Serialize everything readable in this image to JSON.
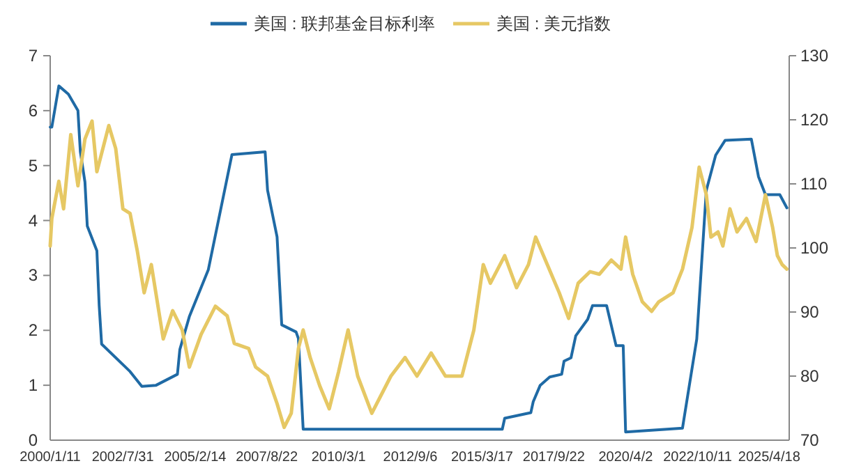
{
  "chart_data": {
    "type": "line",
    "legend": "top",
    "grid": false,
    "marker": "none",
    "line_style": "solid",
    "xlim": [
      "2000-01-11",
      "2025-12-31"
    ],
    "xticks": [
      {
        "value": "2000-01-11",
        "label": "2000/1/11"
      },
      {
        "value": "2002-07-31",
        "label": "2002/7/31"
      },
      {
        "value": "2005-02-14",
        "label": "2005/2/14"
      },
      {
        "value": "2007-08-22",
        "label": "2007/8/22"
      },
      {
        "value": "2010-03-01",
        "label": "2010/3/1"
      },
      {
        "value": "2012-09-06",
        "label": "2012/9/6"
      },
      {
        "value": "2015-03-17",
        "label": "2015/3/17"
      },
      {
        "value": "2017-09-22",
        "label": "2017/9/22"
      },
      {
        "value": "2020-04-02",
        "label": "2020/4/2"
      },
      {
        "value": "2022-10-11",
        "label": "2022/10/11"
      },
      {
        "value": "2025-04-18",
        "label": "2025/4/18"
      }
    ],
    "ylim": [
      0,
      7
    ],
    "yticks": [
      0,
      1,
      2,
      3,
      4,
      5,
      6,
      7
    ],
    "y2lim": [
      70,
      130
    ],
    "y2ticks": [
      70,
      80,
      90,
      100,
      110,
      120,
      130
    ],
    "series": [
      {
        "name": "美国 : 联邦基金目标利率",
        "color": "#1f6aa5",
        "x": [
          "2000-01-11",
          "2000-02",
          "2000-05",
          "2000-09",
          "2001-01",
          "2001-02",
          "2001-04",
          "2001-05",
          "2001-09",
          "2001-10",
          "2001-11",
          "2002-11",
          "2003-04",
          "2003-10",
          "2004-07",
          "2004-08",
          "2004-12",
          "2005-08",
          "2006-06",
          "2007-08",
          "2007-09",
          "2008-01",
          "2008-03",
          "2008-09",
          "2008-10",
          "2008-12",
          "2015-12",
          "2016-01",
          "2016-12",
          "2017-01",
          "2017-04",
          "2017-08",
          "2018-01",
          "2018-02",
          "2018-05",
          "2018-07",
          "2018-12",
          "2019-02",
          "2019-08",
          "2019-12",
          "2020-02",
          "2020-03",
          "2020-04",
          "2022-04",
          "2022-10",
          "2023-01",
          "2023-02",
          "2023-06",
          "2023-10",
          "2024-09",
          "2024-12",
          "2025-03",
          "2025-09",
          "2025-12"
        ],
        "values": [
          5.7,
          5.7,
          6.45,
          6.3,
          6.0,
          5.25,
          4.7,
          3.9,
          3.45,
          2.45,
          1.75,
          1.25,
          0.98,
          1.0,
          1.2,
          1.65,
          2.25,
          3.1,
          5.2,
          5.25,
          4.55,
          3.7,
          2.1,
          1.97,
          1.85,
          0.2,
          0.2,
          0.4,
          0.5,
          0.7,
          1.0,
          1.15,
          1.2,
          1.44,
          1.5,
          1.9,
          2.2,
          2.45,
          2.45,
          1.72,
          1.72,
          1.72,
          0.15,
          0.22,
          1.84,
          3.87,
          4.55,
          5.19,
          5.46,
          5.48,
          4.8,
          4.47,
          4.47,
          4.23
        ]
      },
      {
        "name": "美国 : 美元指数",
        "color": "#e6c864",
        "axis": "y2",
        "x": [
          "2000-01-11",
          "2000-02",
          "2000-05",
          "2000-07",
          "2000-10",
          "2001-01",
          "2001-04",
          "2001-07",
          "2001-09",
          "2002-02",
          "2002-05",
          "2002-08",
          "2002-11",
          "2003-02",
          "2003-05",
          "2003-08",
          "2004-01",
          "2004-05",
          "2004-09",
          "2004-12",
          "2005-05",
          "2005-11",
          "2006-04",
          "2006-07",
          "2007-01",
          "2007-04",
          "2007-09",
          "2008-01",
          "2008-04",
          "2008-07",
          "2008-10",
          "2008-12",
          "2009-03",
          "2009-07",
          "2009-11",
          "2010-03",
          "2010-07",
          "2010-11",
          "2011-05",
          "2012-01",
          "2012-07",
          "2012-12",
          "2013-06",
          "2013-12",
          "2014-07",
          "2014-12",
          "2015-04",
          "2015-07",
          "2016-01",
          "2016-06",
          "2016-11",
          "2017-02",
          "2017-07",
          "2017-12",
          "2018-04",
          "2018-08",
          "2019-01",
          "2019-05",
          "2019-10",
          "2020-02",
          "2020-04",
          "2020-07",
          "2020-11",
          "2021-03",
          "2021-06",
          "2021-12",
          "2022-04",
          "2022-08",
          "2022-11",
          "2023-02",
          "2023-04",
          "2023-07",
          "2023-09",
          "2023-12",
          "2024-03",
          "2024-07",
          "2024-11",
          "2025-03",
          "2025-06",
          "2025-08",
          "2025-10",
          "2025-12"
        ],
        "values": [
          100.3,
          104.6,
          110.4,
          106.1,
          117.7,
          109.7,
          117,
          119.8,
          111.9,
          119.1,
          115.5,
          106.1,
          105.4,
          99.6,
          93,
          97.4,
          85.8,
          90.2,
          87.2,
          81.4,
          86.5,
          90.9,
          89.4,
          85.1,
          84.3,
          81.4,
          80,
          75.7,
          72,
          74.2,
          84.3,
          87.2,
          82.9,
          78.5,
          74.9,
          80.7,
          87.2,
          80,
          74.2,
          80,
          82.9,
          80,
          83.6,
          80,
          80,
          87.2,
          97.4,
          94.5,
          98.8,
          93.8,
          97.4,
          101.7,
          97.4,
          93,
          89,
          94.5,
          96.3,
          95.9,
          98.1,
          96.7,
          101.7,
          95.9,
          91.6,
          90.1,
          91.6,
          93,
          96.7,
          103.2,
          112.6,
          108.3,
          101.7,
          102.5,
          100.3,
          106.1,
          102.5,
          104.6,
          101,
          108.3,
          103.2,
          98.8,
          97.4,
          96.7
        ]
      }
    ]
  }
}
